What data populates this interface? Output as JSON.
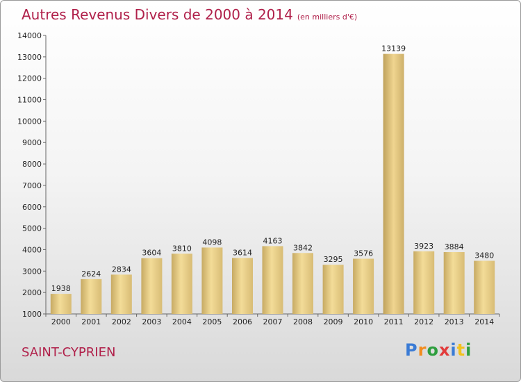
{
  "header": {
    "title": "Autres Revenus Divers de 2000 à 2014",
    "unit_note": "(en milliers d'€)"
  },
  "footer": {
    "city": "SAINT-CYPRIEN",
    "logo_text": "Proxiti"
  },
  "colors": {
    "title": "#b0204a",
    "bar_light": "#f3dc98",
    "bar_dark": "#c7aa63",
    "bar_highlight": "#e8c976"
  },
  "chart_data": {
    "type": "bar",
    "title": "Autres Revenus Divers de 2000 à 2014",
    "subtitle": "(en milliers d'€)",
    "xlabel": "",
    "ylabel": "",
    "categories": [
      "2000",
      "2001",
      "2002",
      "2003",
      "2004",
      "2005",
      "2006",
      "2007",
      "2008",
      "2009",
      "2010",
      "2011",
      "2012",
      "2013",
      "2014"
    ],
    "values": [
      1938,
      2624,
      2834,
      3604,
      3810,
      4098,
      3614,
      4163,
      3842,
      3295,
      3576,
      13139,
      3923,
      3884,
      3480
    ],
    "ylim": [
      1000,
      14000
    ],
    "yticks": [
      1000,
      2000,
      3000,
      4000,
      5000,
      6000,
      7000,
      8000,
      9000,
      10000,
      11000,
      12000,
      13000,
      14000
    ],
    "grid": false,
    "legend": "none"
  }
}
